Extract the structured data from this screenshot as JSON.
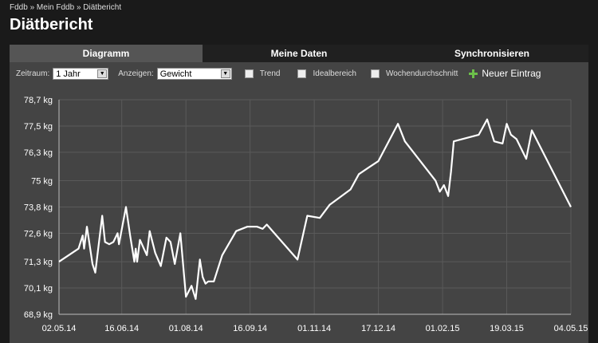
{
  "breadcrumb": {
    "item1": "Fddb",
    "sep": "»",
    "item2": "Mein Fddb",
    "item3": "Diätbericht"
  },
  "page_title": "Diätbericht",
  "tabs": [
    {
      "label": "Diagramm",
      "active": true
    },
    {
      "label": "Meine Daten",
      "active": false
    },
    {
      "label": "Synchronisieren",
      "active": false
    }
  ],
  "toolbar": {
    "zeitraum_label": "Zeitraum:",
    "zeitraum_value": "1 Jahr",
    "anzeigen_label": "Anzeigen:",
    "anzeigen_value": "Gewicht",
    "checkboxes": [
      {
        "label": "Trend"
      },
      {
        "label": "Idealbereich"
      },
      {
        "label": "Wochendurchschnitt"
      }
    ],
    "new_entry_label": "Neuer Eintrag"
  },
  "colors": {
    "background": "#1a1a1a",
    "panel": "#444444",
    "line": "#ffffff",
    "add_icon": "#6cc04a"
  },
  "chart_data": {
    "type": "line",
    "ylim": [
      68.9,
      78.7
    ],
    "yticks": [
      {
        "value": 78.7,
        "label": "78,7 kg"
      },
      {
        "value": 77.5,
        "label": "77,5 kg"
      },
      {
        "value": 76.3,
        "label": "76,3 kg"
      },
      {
        "value": 75.0,
        "label": "75 kg"
      },
      {
        "value": 73.8,
        "label": "73,8 kg"
      },
      {
        "value": 72.6,
        "label": "72,6 kg"
      },
      {
        "value": 71.3,
        "label": "71,3 kg"
      },
      {
        "value": 70.1,
        "label": "70,1 kg"
      },
      {
        "value": 68.9,
        "label": "68,9 kg"
      }
    ],
    "xticks": [
      "02.05.14",
      "16.06.14",
      "01.08.14",
      "16.09.14",
      "01.11.14",
      "17.12.14",
      "01.02.15",
      "19.03.15",
      "04.05.15"
    ],
    "series": [
      {
        "values": [
          [
            "2014-05-02",
            71.3
          ],
          [
            "2014-05-16",
            71.9
          ],
          [
            "2014-05-19",
            72.5
          ],
          [
            "2014-05-20",
            71.9
          ],
          [
            "2014-05-22",
            72.9
          ],
          [
            "2014-05-26",
            71.2
          ],
          [
            "2014-05-28",
            70.8
          ],
          [
            "2014-06-02",
            73.4
          ],
          [
            "2014-06-04",
            72.2
          ],
          [
            "2014-06-07",
            72.1
          ],
          [
            "2014-06-10",
            72.2
          ],
          [
            "2014-06-13",
            72.6
          ],
          [
            "2014-06-14",
            72.1
          ],
          [
            "2014-06-19",
            73.8
          ],
          [
            "2014-06-22",
            72.5
          ],
          [
            "2014-06-25",
            71.3
          ],
          [
            "2014-06-26",
            71.9
          ],
          [
            "2014-06-27",
            71.3
          ],
          [
            "2014-06-29",
            72.3
          ],
          [
            "2014-07-04",
            71.6
          ],
          [
            "2014-07-06",
            72.7
          ],
          [
            "2014-07-10",
            71.7
          ],
          [
            "2014-07-14",
            71.1
          ],
          [
            "2014-07-18",
            72.4
          ],
          [
            "2014-07-21",
            72.2
          ],
          [
            "2014-07-24",
            71.2
          ],
          [
            "2014-07-28",
            72.6
          ],
          [
            "2014-08-01",
            69.7
          ],
          [
            "2014-08-05",
            70.2
          ],
          [
            "2014-08-08",
            69.6
          ],
          [
            "2014-08-11",
            71.4
          ],
          [
            "2014-08-13",
            70.6
          ],
          [
            "2014-08-15",
            70.3
          ],
          [
            "2014-08-17",
            70.4
          ],
          [
            "2014-08-21",
            70.4
          ],
          [
            "2014-08-27",
            71.6
          ],
          [
            "2014-09-06",
            72.7
          ],
          [
            "2014-09-14",
            72.9
          ],
          [
            "2014-09-21",
            72.9
          ],
          [
            "2014-09-25",
            72.8
          ],
          [
            "2014-09-28",
            73.0
          ],
          [
            "2014-10-20",
            71.4
          ],
          [
            "2014-10-27",
            73.4
          ],
          [
            "2014-11-05",
            73.3
          ],
          [
            "2014-11-12",
            73.9
          ],
          [
            "2014-11-27",
            74.6
          ],
          [
            "2014-12-03",
            75.3
          ],
          [
            "2014-12-10",
            75.6
          ],
          [
            "2014-12-17",
            75.9
          ],
          [
            "2014-12-31",
            77.6
          ],
          [
            "2015-01-05",
            76.8
          ],
          [
            "2015-01-27",
            75.0
          ],
          [
            "2015-01-30",
            74.5
          ],
          [
            "2015-02-02",
            74.8
          ],
          [
            "2015-02-05",
            74.3
          ],
          [
            "2015-02-07",
            75.4
          ],
          [
            "2015-02-09",
            76.8
          ],
          [
            "2015-02-27",
            77.1
          ],
          [
            "2015-03-05",
            77.8
          ],
          [
            "2015-03-10",
            76.8
          ],
          [
            "2015-03-16",
            76.7
          ],
          [
            "2015-03-19",
            77.6
          ],
          [
            "2015-03-22",
            77.1
          ],
          [
            "2015-03-26",
            76.9
          ],
          [
            "2015-04-02",
            76.0
          ],
          [
            "2015-04-06",
            77.3
          ],
          [
            "2015-05-04",
            73.8
          ]
        ]
      }
    ],
    "grid": true
  }
}
